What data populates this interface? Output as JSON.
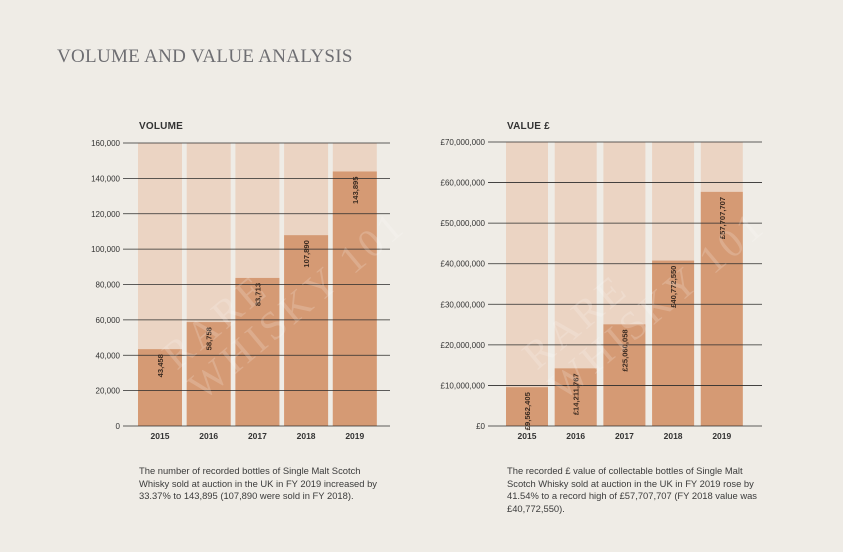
{
  "page": {
    "title": "VOLUME AND VALUE ANALYSIS"
  },
  "watermark": [
    "RARE",
    "WHISKY 101"
  ],
  "colors": {
    "bar": "#d59a74",
    "bar_bg": "#ebd4c3",
    "grid": "#2b2b2b",
    "text": "#333333"
  },
  "captions": {
    "volume": "The number of recorded bottles of Single Malt Scotch Whisky sold at auction in the UK in FY 2019 increased by 33.37% to 143,895 (107,890 were sold in FY 2018).",
    "value": "The recorded £ value of collectable bottles of Single Malt Scotch Whisky sold at auction in the UK in FY 2019 rose by 41.54% to a record high of £57,707,707 (FY 2018 value was £40,772,550)."
  },
  "chart_data": [
    {
      "type": "bar",
      "title": "VOLUME",
      "categories": [
        "2015",
        "2016",
        "2017",
        "2018",
        "2019"
      ],
      "values": [
        43458,
        58758,
        83713,
        107890,
        143895
      ],
      "value_labels": [
        "43,458",
        "58,758",
        "83,713",
        "107,890",
        "143,895"
      ],
      "ylim": [
        0,
        160000
      ],
      "yticks": [
        0,
        20000,
        40000,
        60000,
        80000,
        100000,
        120000,
        140000,
        160000
      ],
      "ytick_labels": [
        "0",
        "20,000",
        "40,000",
        "60,000",
        "80,000",
        "100,000",
        "120,000",
        "140,000",
        "160,000"
      ],
      "xlabel": "",
      "ylabel": ""
    },
    {
      "type": "bar",
      "title": "VALUE £",
      "categories": [
        "2015",
        "2016",
        "2017",
        "2018",
        "2019"
      ],
      "values": [
        9562405,
        14211767,
        25060058,
        40772550,
        57707707
      ],
      "value_labels": [
        "£9,562,405",
        "£14,211,767",
        "£25,060,058",
        "£40,772,550",
        "£57,707,707"
      ],
      "ylim": [
        0,
        70000000
      ],
      "yticks": [
        0,
        10000000,
        20000000,
        30000000,
        40000000,
        50000000,
        60000000,
        70000000
      ],
      "ytick_labels": [
        "£0",
        "£10,000,000",
        "£20,000,000",
        "£30,000,000",
        "£40,000,000",
        "£50,000,000",
        "£60,000,000",
        "£70,000,000"
      ],
      "xlabel": "",
      "ylabel": ""
    }
  ]
}
